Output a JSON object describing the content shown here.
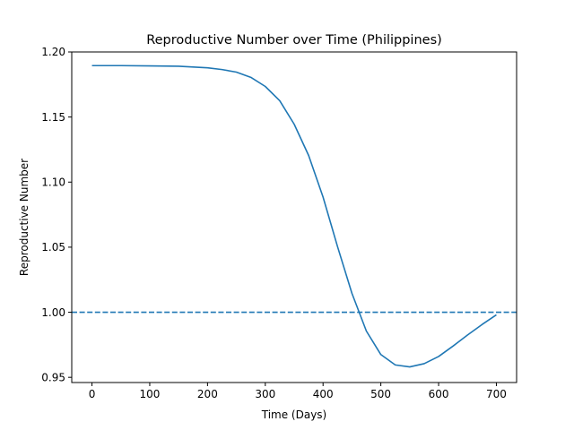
{
  "chart_data": {
    "type": "line",
    "title": "Reproductive Number over Time (Philippines)",
    "xlabel": "Time (Days)",
    "ylabel": "Reproductive Number",
    "xlim": [
      -35,
      735
    ],
    "ylim": [
      0.946,
      1.2
    ],
    "x_ticks": [
      0,
      100,
      200,
      300,
      400,
      500,
      600,
      700
    ],
    "x_tick_labels": [
      "0",
      "100",
      "200",
      "300",
      "400",
      "500",
      "600",
      "700"
    ],
    "y_ticks": [
      0.95,
      1.0,
      1.05,
      1.1,
      1.15,
      1.2
    ],
    "y_tick_labels": [
      "0.95",
      "1.00",
      "1.05",
      "1.10",
      "1.15",
      "1.20"
    ],
    "grid": false,
    "series": [
      {
        "style": "solid",
        "color": "#1f77b4",
        "x": [
          0,
          50,
          100,
          150,
          200,
          225,
          250,
          275,
          300,
          325,
          350,
          375,
          400,
          425,
          450,
          475,
          500,
          525,
          550,
          575,
          600,
          625,
          650,
          675,
          700
        ],
        "y": [
          1.1895,
          1.1895,
          1.1893,
          1.189,
          1.1878,
          1.1865,
          1.1845,
          1.1805,
          1.1735,
          1.1625,
          1.1445,
          1.1205,
          1.0885,
          1.0505,
          1.0145,
          0.9855,
          0.9675,
          0.9595,
          0.958,
          0.9605,
          0.966,
          0.974,
          0.9825,
          0.9905,
          0.998
        ]
      },
      {
        "style": "dashed",
        "color": "#1f77b4",
        "x": [
          -35,
          735
        ],
        "y": [
          1.0,
          1.0
        ]
      }
    ]
  }
}
